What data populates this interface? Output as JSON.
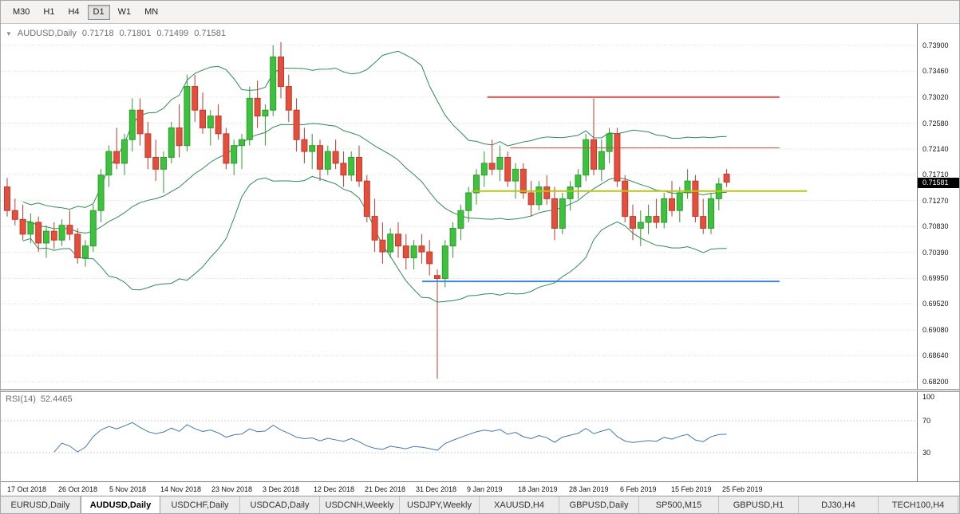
{
  "toolbar": {
    "timeframe_buttons": [
      {
        "label": "M30",
        "active": false
      },
      {
        "label": "H1",
        "active": false
      },
      {
        "label": "H4",
        "active": false
      },
      {
        "label": "D1",
        "active": true
      },
      {
        "label": "W1",
        "active": false
      },
      {
        "label": "MN",
        "active": false
      }
    ]
  },
  "chart": {
    "header": {
      "collapse_icon": "▼",
      "symbol": "AUDUSD,Daily",
      "open": "0.71718",
      "high": "0.71801",
      "low": "0.71499",
      "close": "0.71581"
    }
  },
  "chart_data": {
    "type": "candlestick",
    "symbol": "AUDUSD",
    "timeframe": "Daily",
    "ylim": [
      0.6808,
      0.7426
    ],
    "price_axis": {
      "labels": [
        "0.73900",
        "0.73460",
        "0.73020",
        "0.72580",
        "0.72140",
        "0.71710",
        "0.71270",
        "0.70830",
        "0.70390",
        "0.69950",
        "0.69520",
        "0.69080",
        "0.68640",
        "0.68200"
      ],
      "current": "0.71581"
    },
    "time_axis": {
      "labels": [
        "17 Oct 2018",
        "26 Oct 2018",
        "5 Nov 2018",
        "14 Nov 2018",
        "23 Nov 2018",
        "3 Dec 2018",
        "12 Dec 2018",
        "21 Dec 2018",
        "31 Dec 2018",
        "9 Jan 2019",
        "18 Jan 2019",
        "28 Jan 2019",
        "6 Feb 2019",
        "15 Feb 2019",
        "25 Feb 2019"
      ]
    },
    "candles": [
      [
        0.715,
        0.7165,
        0.71,
        0.711
      ],
      [
        0.711,
        0.713,
        0.7085,
        0.7095
      ],
      [
        0.7095,
        0.712,
        0.706,
        0.707
      ],
      [
        0.707,
        0.7105,
        0.7055,
        0.709
      ],
      [
        0.709,
        0.71,
        0.704,
        0.7055
      ],
      [
        0.7055,
        0.7085,
        0.703,
        0.7075
      ],
      [
        0.7075,
        0.709,
        0.7045,
        0.706
      ],
      [
        0.706,
        0.7095,
        0.705,
        0.7085
      ],
      [
        0.7085,
        0.711,
        0.706,
        0.707
      ],
      [
        0.707,
        0.708,
        0.702,
        0.703
      ],
      [
        0.703,
        0.706,
        0.7015,
        0.705
      ],
      [
        0.705,
        0.712,
        0.704,
        0.711
      ],
      [
        0.711,
        0.718,
        0.709,
        0.717
      ],
      [
        0.717,
        0.722,
        0.715,
        0.721
      ],
      [
        0.721,
        0.725,
        0.718,
        0.719
      ],
      [
        0.719,
        0.724,
        0.717,
        0.723
      ],
      [
        0.723,
        0.73,
        0.721,
        0.728
      ],
      [
        0.728,
        0.73,
        0.722,
        0.724
      ],
      [
        0.724,
        0.726,
        0.718,
        0.72
      ],
      [
        0.72,
        0.723,
        0.716,
        0.718
      ],
      [
        0.718,
        0.721,
        0.714,
        0.72
      ],
      [
        0.72,
        0.726,
        0.719,
        0.725
      ],
      [
        0.725,
        0.729,
        0.72,
        0.722
      ],
      [
        0.722,
        0.734,
        0.721,
        0.732
      ],
      [
        0.732,
        0.734,
        0.726,
        0.728
      ],
      [
        0.728,
        0.731,
        0.724,
        0.725
      ],
      [
        0.725,
        0.728,
        0.722,
        0.727
      ],
      [
        0.727,
        0.729,
        0.723,
        0.724
      ],
      [
        0.724,
        0.725,
        0.718,
        0.719
      ],
      [
        0.719,
        0.723,
        0.717,
        0.722
      ],
      [
        0.722,
        0.724,
        0.718,
        0.723
      ],
      [
        0.723,
        0.732,
        0.722,
        0.73
      ],
      [
        0.73,
        0.733,
        0.725,
        0.727
      ],
      [
        0.727,
        0.729,
        0.722,
        0.728
      ],
      [
        0.728,
        0.739,
        0.727,
        0.737
      ],
      [
        0.737,
        0.7395,
        0.73,
        0.732
      ],
      [
        0.732,
        0.734,
        0.726,
        0.728
      ],
      [
        0.728,
        0.73,
        0.721,
        0.723
      ],
      [
        0.723,
        0.725,
        0.719,
        0.721
      ],
      [
        0.721,
        0.724,
        0.718,
        0.722
      ],
      [
        0.722,
        0.723,
        0.716,
        0.718
      ],
      [
        0.718,
        0.722,
        0.717,
        0.721
      ],
      [
        0.721,
        0.723,
        0.718,
        0.719
      ],
      [
        0.719,
        0.721,
        0.715,
        0.717
      ],
      [
        0.717,
        0.721,
        0.716,
        0.72
      ],
      [
        0.72,
        0.722,
        0.715,
        0.716
      ],
      [
        0.716,
        0.717,
        0.709,
        0.71
      ],
      [
        0.71,
        0.713,
        0.704,
        0.706
      ],
      [
        0.706,
        0.709,
        0.702,
        0.704
      ],
      [
        0.704,
        0.708,
        0.703,
        0.707
      ],
      [
        0.707,
        0.709,
        0.703,
        0.705
      ],
      [
        0.705,
        0.707,
        0.701,
        0.703
      ],
      [
        0.703,
        0.706,
        0.701,
        0.705
      ],
      [
        0.705,
        0.707,
        0.702,
        0.704
      ],
      [
        0.704,
        0.706,
        0.7,
        0.702
      ],
      [
        0.7,
        0.701,
        0.6825,
        0.6995
      ],
      [
        0.6995,
        0.706,
        0.698,
        0.705
      ],
      [
        0.705,
        0.709,
        0.703,
        0.708
      ],
      [
        0.708,
        0.712,
        0.706,
        0.711
      ],
      [
        0.711,
        0.715,
        0.709,
        0.714
      ],
      [
        0.714,
        0.718,
        0.712,
        0.717
      ],
      [
        0.717,
        0.721,
        0.715,
        0.719
      ],
      [
        0.719,
        0.723,
        0.717,
        0.718
      ],
      [
        0.718,
        0.722,
        0.716,
        0.72
      ],
      [
        0.72,
        0.721,
        0.715,
        0.716
      ],
      [
        0.716,
        0.719,
        0.713,
        0.718
      ],
      [
        0.718,
        0.719,
        0.713,
        0.714
      ],
      [
        0.714,
        0.716,
        0.71,
        0.712
      ],
      [
        0.712,
        0.716,
        0.711,
        0.715
      ],
      [
        0.715,
        0.717,
        0.712,
        0.713
      ],
      [
        0.713,
        0.715,
        0.706,
        0.708
      ],
      [
        0.708,
        0.714,
        0.707,
        0.713
      ],
      [
        0.713,
        0.716,
        0.711,
        0.715
      ],
      [
        0.715,
        0.718,
        0.713,
        0.717
      ],
      [
        0.717,
        0.724,
        0.716,
        0.723
      ],
      [
        0.723,
        0.73,
        0.717,
        0.718
      ],
      [
        0.718,
        0.723,
        0.716,
        0.721
      ],
      [
        0.721,
        0.725,
        0.719,
        0.724
      ],
      [
        0.724,
        0.725,
        0.715,
        0.716
      ],
      [
        0.716,
        0.717,
        0.709,
        0.71
      ],
      [
        0.71,
        0.712,
        0.706,
        0.708
      ],
      [
        0.708,
        0.711,
        0.705,
        0.709
      ],
      [
        0.709,
        0.712,
        0.707,
        0.71
      ],
      [
        0.71,
        0.713,
        0.708,
        0.709
      ],
      [
        0.709,
        0.714,
        0.708,
        0.713
      ],
      [
        0.713,
        0.716,
        0.71,
        0.711
      ],
      [
        0.711,
        0.715,
        0.709,
        0.714
      ],
      [
        0.714,
        0.718,
        0.713,
        0.716
      ],
      [
        0.716,
        0.717,
        0.709,
        0.71
      ],
      [
        0.71,
        0.713,
        0.707,
        0.708
      ],
      [
        0.708,
        0.714,
        0.707,
        0.713
      ],
      [
        0.713,
        0.7165,
        0.711,
        0.7155
      ],
      [
        0.71718,
        0.71801,
        0.71499,
        0.71581
      ]
    ],
    "indicators": {
      "bollinger": {
        "name": "Bollinger Bands",
        "period": 20,
        "deviation": 2,
        "color": "#2e8b57"
      },
      "rsi": {
        "name": "RSI",
        "label": "RSI(14)",
        "value": "52.4465",
        "color": "#4377b8",
        "levels": [
          70,
          30
        ],
        "axis_labels": [
          "100",
          "70",
          "30"
        ],
        "range": [
          0,
          100
        ]
      }
    },
    "objects": [
      {
        "type": "horizontal-line",
        "price": 0.7302,
        "x1": 0.531,
        "x2": 0.85,
        "color": "#e8524a",
        "width": 2
      },
      {
        "type": "horizontal-line",
        "price": 0.7216,
        "x1": 0.556,
        "x2": 0.85,
        "color": "#d9453c",
        "width": 1
      },
      {
        "type": "horizontal-line",
        "price": 0.7143,
        "x1": 0.514,
        "x2": 0.88,
        "color": "#b8c416",
        "width": 2
      },
      {
        "type": "horizontal-line",
        "price": 0.699,
        "x1": 0.46,
        "x2": 0.85,
        "color": "#3b87d9",
        "width": 2
      }
    ],
    "colors": {
      "bull": "#3dc23d",
      "bull_border": "#2e9b2e",
      "bear": "#e44f3d",
      "bear_border": "#bf3a2a",
      "band": "#2e8b57",
      "grid": "#d9d9d9",
      "rsi": "#4377b8",
      "badge_bg": "#000000",
      "badge_text": "#ffffff"
    }
  },
  "tabs": {
    "items": [
      {
        "label": "EURUSD,Daily",
        "active": false
      },
      {
        "label": "AUDUSD,Daily",
        "active": true
      },
      {
        "label": "USDCHF,Daily",
        "active": false
      },
      {
        "label": "USDCAD,Daily",
        "active": false
      },
      {
        "label": "USDCNH,Weekly",
        "active": false
      },
      {
        "label": "USDJPY,Weekly",
        "active": false
      },
      {
        "label": "XAUUSD,H4",
        "active": false
      },
      {
        "label": "GBPUSD,Daily",
        "active": false
      },
      {
        "label": "SP500,M15",
        "active": false
      },
      {
        "label": "GBPUSD,H1",
        "active": false
      },
      {
        "label": "DJ30,H4",
        "active": false
      },
      {
        "label": "TECH100,H4",
        "active": false
      }
    ]
  }
}
